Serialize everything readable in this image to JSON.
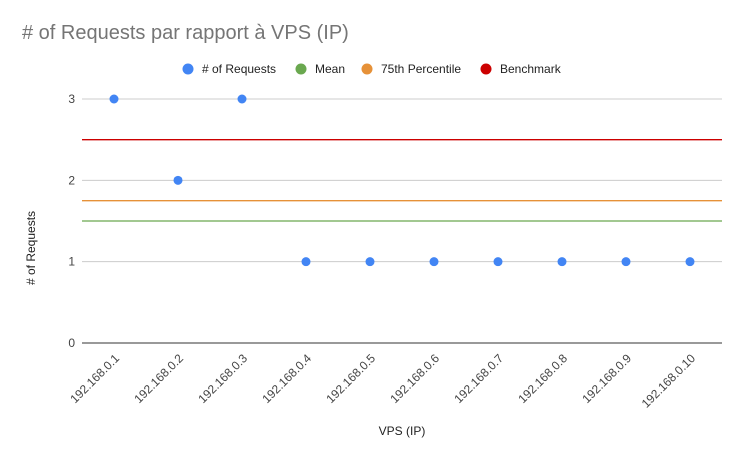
{
  "chart_data": {
    "type": "scatter",
    "title": "# of Requests par rapport à VPS (IP)",
    "xlabel": "VPS (IP)",
    "ylabel": "# of Requests",
    "categories": [
      "192.168.0.1",
      "192.168.0.2",
      "192.168.0.3",
      "192.168.0.4",
      "192.168.0.5",
      "192.168.0.6",
      "192.168.0.7",
      "192.168.0.8",
      "192.168.0.9",
      "192.168.0.10"
    ],
    "ylim": [
      0,
      3
    ],
    "yticks": [
      0,
      1,
      2,
      3
    ],
    "grid": true,
    "legend_position": "top",
    "series": [
      {
        "name": "# of Requests",
        "color": "#4285f4",
        "kind": "points",
        "values": [
          3,
          2,
          3,
          1,
          1,
          1,
          1,
          1,
          1,
          1
        ]
      },
      {
        "name": "Mean",
        "color": "#6aa84f",
        "kind": "hline",
        "value": 1.5
      },
      {
        "name": "75th Percentile",
        "color": "#e69138",
        "kind": "hline",
        "value": 1.75
      },
      {
        "name": "Benchmark",
        "color": "#cc0000",
        "kind": "hline",
        "value": 2.5
      }
    ]
  }
}
